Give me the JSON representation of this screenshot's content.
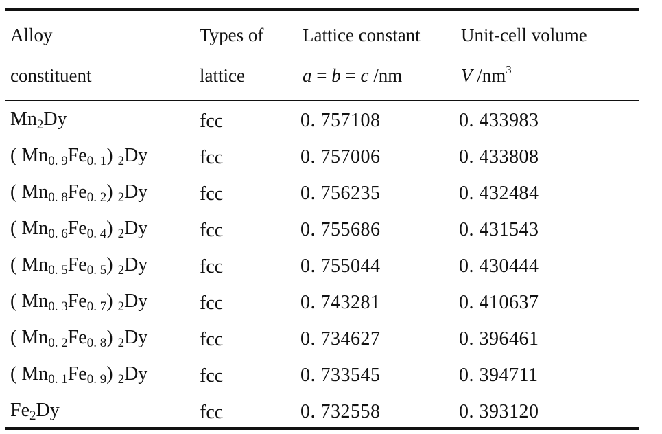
{
  "table": {
    "headers": [
      {
        "line1": "Alloy",
        "line2": "constituent"
      },
      {
        "line1": "Types of",
        "line2": "lattice"
      },
      {
        "line1": "Lattice constant",
        "line2_parts": [
          "a",
          " = ",
          "b",
          " = ",
          "c",
          " /nm"
        ]
      },
      {
        "line1": "Unit-cell volume",
        "line2_parts": [
          "V",
          " /nm",
          "3"
        ]
      }
    ],
    "rows": [
      {
        "alloy": {
          "a": "Mn",
          "b": "2",
          "c": "Dy"
        },
        "lattice": "fcc",
        "a": "0. 757108",
        "v": "0. 433983"
      },
      {
        "alloy": {
          "open": "( ",
          "mn": "Mn",
          "x": "0. 9",
          "fe": "Fe",
          "y": "0. 1",
          "close": ") ",
          "two": "2",
          "dy": "Dy"
        },
        "lattice": "fcc",
        "a": "0. 757006",
        "v": "0. 433808"
      },
      {
        "alloy": {
          "open": "( ",
          "mn": "Mn",
          "x": "0. 8",
          "fe": "Fe",
          "y": "0. 2",
          "close": ") ",
          "two": "2",
          "dy": "Dy"
        },
        "lattice": "fcc",
        "a": "0. 756235",
        "v": "0. 432484"
      },
      {
        "alloy": {
          "open": "( ",
          "mn": "Mn",
          "x": "0. 6",
          "fe": "Fe",
          "y": "0. 4",
          "close": ") ",
          "two": "2",
          "dy": "Dy"
        },
        "lattice": "fcc",
        "a": "0. 755686",
        "v": "0. 431543"
      },
      {
        "alloy": {
          "open": "( ",
          "mn": "Mn",
          "x": "0. 5",
          "fe": "Fe",
          "y": "0. 5",
          "close": ") ",
          "two": "2",
          "dy": "Dy"
        },
        "lattice": "fcc",
        "a": "0. 755044",
        "v": "0. 430444"
      },
      {
        "alloy": {
          "open": "( ",
          "mn": "Mn",
          "x": "0. 3",
          "fe": "Fe",
          "y": "0. 7",
          "close": ") ",
          "two": "2",
          "dy": "Dy"
        },
        "lattice": "fcc",
        "a": "0. 743281",
        "v": "0. 410637"
      },
      {
        "alloy": {
          "open": "( ",
          "mn": "Mn",
          "x": "0. 2",
          "fe": "Fe",
          "y": "0. 8",
          "close": ") ",
          "two": "2",
          "dy": "Dy"
        },
        "lattice": "fcc",
        "a": "0. 734627",
        "v": "0. 396461"
      },
      {
        "alloy": {
          "open": "( ",
          "mn": "Mn",
          "x": "0. 1",
          "fe": "Fe",
          "y": "0. 9",
          "close": ") ",
          "two": "2",
          "dy": "Dy"
        },
        "lattice": "fcc",
        "a": "0. 733545",
        "v": "0. 394711"
      },
      {
        "alloy": {
          "a": "Fe",
          "b": "2",
          "c": "Dy"
        },
        "lattice": "fcc",
        "a": "0. 732558",
        "v": "0. 393120"
      }
    ]
  }
}
